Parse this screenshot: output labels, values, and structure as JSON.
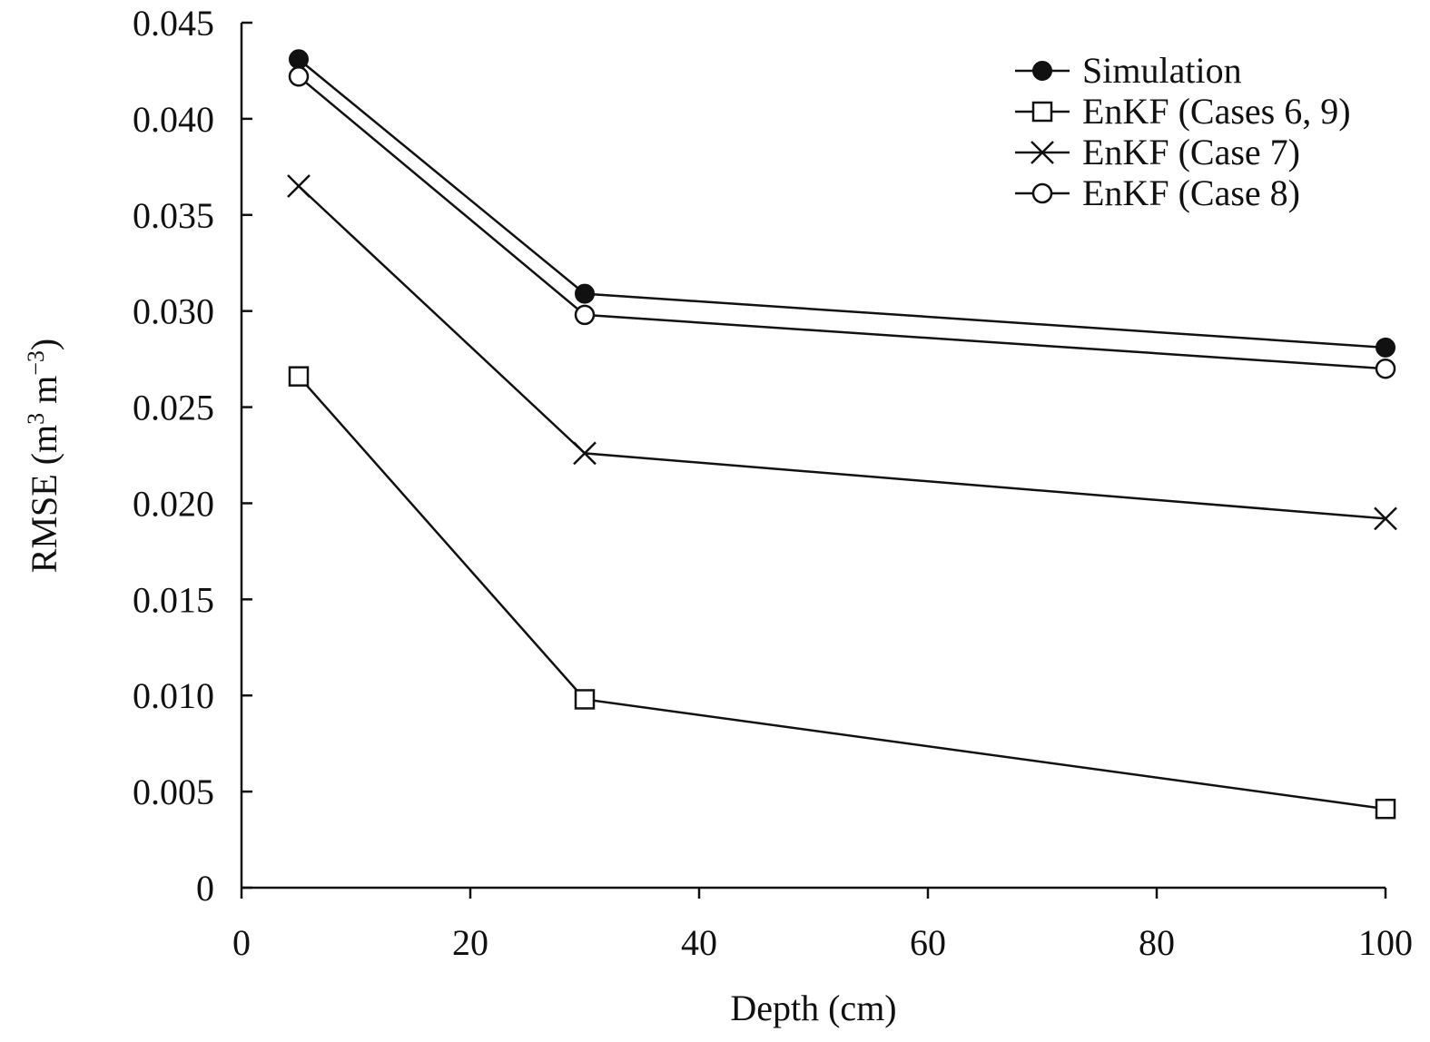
{
  "chart_data": {
    "type": "line",
    "title": "",
    "xlabel": "Depth (cm)",
    "ylabel": "RMSE (m³ m⁻³)",
    "ylabel_parts": {
      "base": "RMSE (m",
      "sup1": "3",
      "mid": " m",
      "sup2": "−3",
      "end": ")"
    },
    "xlim": [
      0,
      100
    ],
    "ylim": [
      0,
      0.045
    ],
    "xticks": [
      0,
      20,
      40,
      60,
      80,
      100
    ],
    "xtick_labels": [
      "0",
      "20",
      "40",
      "60",
      "80",
      "100"
    ],
    "yticks": [
      0,
      0.005,
      0.01,
      0.015,
      0.02,
      0.025,
      0.03,
      0.035,
      0.04,
      0.045
    ],
    "ytick_labels": [
      "0",
      "0.005",
      "0.010",
      "0.015",
      "0.020",
      "0.025",
      "0.030",
      "0.035",
      "0.040",
      "0.045"
    ],
    "grid": false,
    "legend_position": "top-right",
    "x": [
      5,
      30,
      100
    ],
    "series": [
      {
        "name": "Simulation",
        "marker": "filled-circle",
        "values": [
          0.0431,
          0.0309,
          0.0281
        ]
      },
      {
        "name": "EnKF (Cases 6, 9)",
        "marker": "open-square",
        "values": [
          0.0266,
          0.0098,
          0.0041
        ]
      },
      {
        "name": "EnKF (Case 7)",
        "marker": "cross",
        "values": [
          0.0365,
          0.0226,
          0.0192
        ]
      },
      {
        "name": "EnKF (Case 8)",
        "marker": "open-circle",
        "values": [
          0.0422,
          0.0298,
          0.027
        ]
      }
    ]
  },
  "colors": {
    "ink": "#111111",
    "background": "#ffffff"
  }
}
